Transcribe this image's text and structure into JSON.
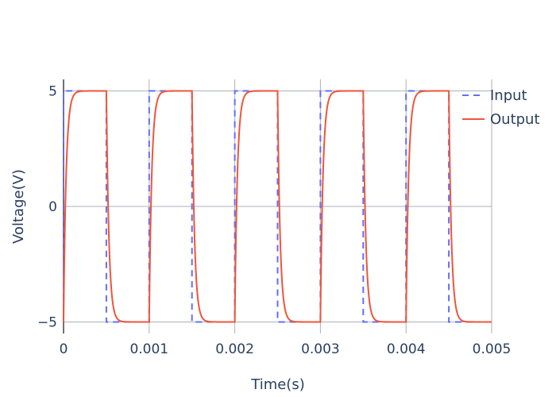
{
  "chart_data": {
    "type": "line",
    "title": "",
    "xlabel": "Time(s)",
    "ylabel": "Voltage(V)",
    "xlim": [
      0,
      0.005
    ],
    "ylim": [
      -5.5,
      5.5
    ],
    "x_ticks": [
      0,
      0.001,
      0.002,
      0.003,
      0.004,
      0.005
    ],
    "x_tick_labels": [
      "0",
      "0.001",
      "0.002",
      "0.003",
      "0.004",
      "0.005"
    ],
    "y_ticks": [
      -5,
      0,
      5
    ],
    "y_tick_labels": [
      "−5",
      "0",
      "5"
    ],
    "grid": true,
    "legend_position": "top-right",
    "series": [
      {
        "name": "Input",
        "style": "dashed",
        "color": "#636efa",
        "description": "Square wave, period 0.001 s, 50% duty cycle, switching between +5 V and -5 V",
        "x": [
          0,
          0,
          0.0005,
          0.0005,
          0.001,
          0.001,
          0.0015,
          0.0015,
          0.002,
          0.002,
          0.0025,
          0.0025,
          0.003,
          0.003,
          0.0035,
          0.0035,
          0.004,
          0.004,
          0.0045,
          0.0045,
          0.005
        ],
        "y": [
          -5,
          5,
          5,
          -5,
          -5,
          5,
          5,
          -5,
          -5,
          5,
          5,
          -5,
          -5,
          5,
          5,
          -5,
          -5,
          5,
          5,
          -5,
          -5
        ]
      },
      {
        "name": "Output",
        "style": "solid",
        "color": "#ef553b",
        "description": "First-order (RC) response to the square input, time constant about 0.00003 s",
        "time_constant": 3e-05,
        "period": 0.001,
        "high": 5,
        "low": -5,
        "initial": -5
      }
    ]
  }
}
